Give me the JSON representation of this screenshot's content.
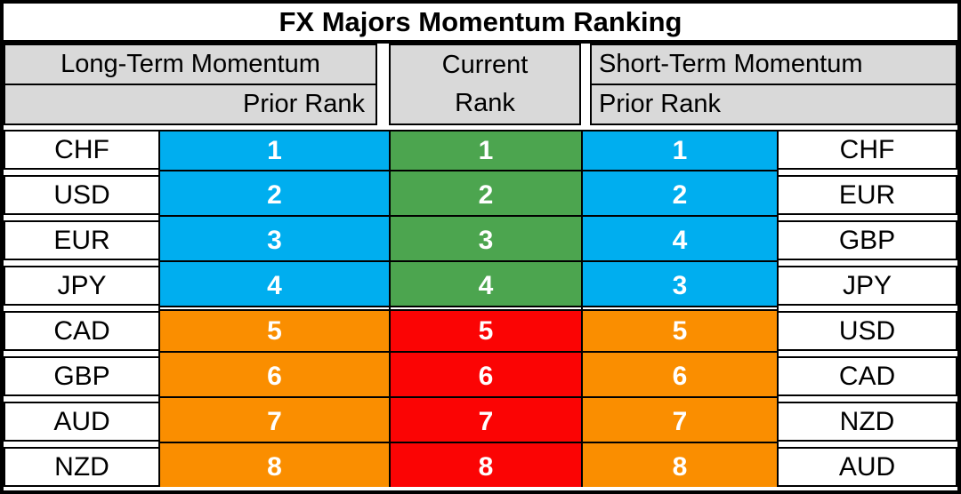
{
  "title": "FX Majors Momentum Ranking",
  "headers": {
    "long_term": "Long-Term Momentum",
    "prior_rank_left": "Prior Rank",
    "current_line1": "Current",
    "current_line2": "Rank",
    "short_term": "Short-Term Momentum",
    "prior_rank_right": "Prior Rank"
  },
  "colors": {
    "side_rank_top": "#00AEEF",
    "side_rank_bottom": "#FA8E00",
    "center_rank_top": "#4CA54F",
    "center_rank_bottom": "#FB0404",
    "header_gray": "#D9D9D9",
    "border_black": "#000000",
    "rank_text": "#FFFFFF"
  },
  "chart_data": {
    "type": "table",
    "title": "FX Majors Momentum Ranking",
    "columns": [
      "Long-Term Momentum Currency",
      "Long-Term Prior Rank",
      "Current Rank",
      "Short-Term Prior Rank",
      "Short-Term Momentum Currency"
    ],
    "rows": [
      [
        "CHF",
        1,
        1,
        1,
        "CHF"
      ],
      [
        "USD",
        2,
        2,
        2,
        "EUR"
      ],
      [
        "EUR",
        3,
        3,
        4,
        "GBP"
      ],
      [
        "JPY",
        4,
        4,
        3,
        "JPY"
      ],
      [
        "CAD",
        5,
        5,
        5,
        "USD"
      ],
      [
        "GBP",
        6,
        6,
        6,
        "CAD"
      ],
      [
        "AUD",
        7,
        7,
        7,
        "NZD"
      ],
      [
        "NZD",
        8,
        8,
        8,
        "AUD"
      ]
    ],
    "layout_hints": {
      "top_section_rows": 4,
      "bottom_section_rows": 4,
      "side_rank_color_top": "blue",
      "side_rank_color_bottom": "orange",
      "center_rank_color_top": "green",
      "center_rank_color_bottom": "red"
    }
  }
}
